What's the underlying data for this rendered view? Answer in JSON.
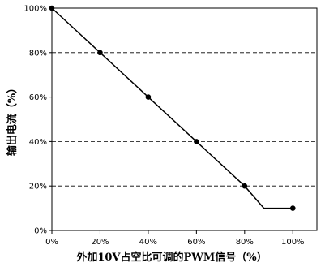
{
  "chart_data": {
    "type": "line",
    "title": "",
    "xlabel": "外加10V占空比可调的PWM信号（%）",
    "ylabel": "输出电流（%）",
    "xlim": [
      0,
      110
    ],
    "ylim": [
      0,
      100
    ],
    "x_ticks": [
      "0%",
      "20%",
      "40%",
      "60%",
      "80%",
      "100%"
    ],
    "y_ticks": [
      "0%",
      "20%",
      "40%",
      "60%",
      "80%",
      "100%"
    ],
    "grid": "horizontal-dashed",
    "series": [
      {
        "values": [
          {
            "x": 0,
            "y": 100,
            "marker": true
          },
          {
            "x": 20,
            "y": 80,
            "marker": true
          },
          {
            "x": 40,
            "y": 60,
            "marker": true
          },
          {
            "x": 60,
            "y": 40,
            "marker": true
          },
          {
            "x": 80,
            "y": 20,
            "marker": true
          },
          {
            "x": 88,
            "y": 10,
            "marker": false
          },
          {
            "x": 100,
            "y": 10,
            "marker": true
          }
        ]
      }
    ]
  }
}
